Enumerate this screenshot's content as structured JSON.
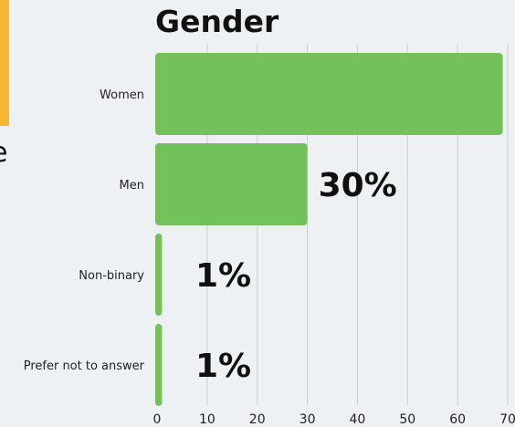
{
  "side": {
    "cut_text": "e"
  },
  "chart_data": {
    "type": "bar",
    "orientation": "horizontal",
    "title": "Gender",
    "categories": [
      "Women",
      "Men",
      "Non-binary",
      "Prefer not to answer"
    ],
    "values": [
      69,
      30,
      1,
      1
    ],
    "data_labels": [
      "",
      "30%",
      "1%",
      "1%"
    ],
    "xlim": [
      0,
      70
    ],
    "xticks": [
      "0",
      "10",
      "20",
      "30",
      "40",
      "50",
      "60",
      "70"
    ],
    "grid": true,
    "bar_color": "#72c15a",
    "grid_color": "#c9ced2"
  }
}
